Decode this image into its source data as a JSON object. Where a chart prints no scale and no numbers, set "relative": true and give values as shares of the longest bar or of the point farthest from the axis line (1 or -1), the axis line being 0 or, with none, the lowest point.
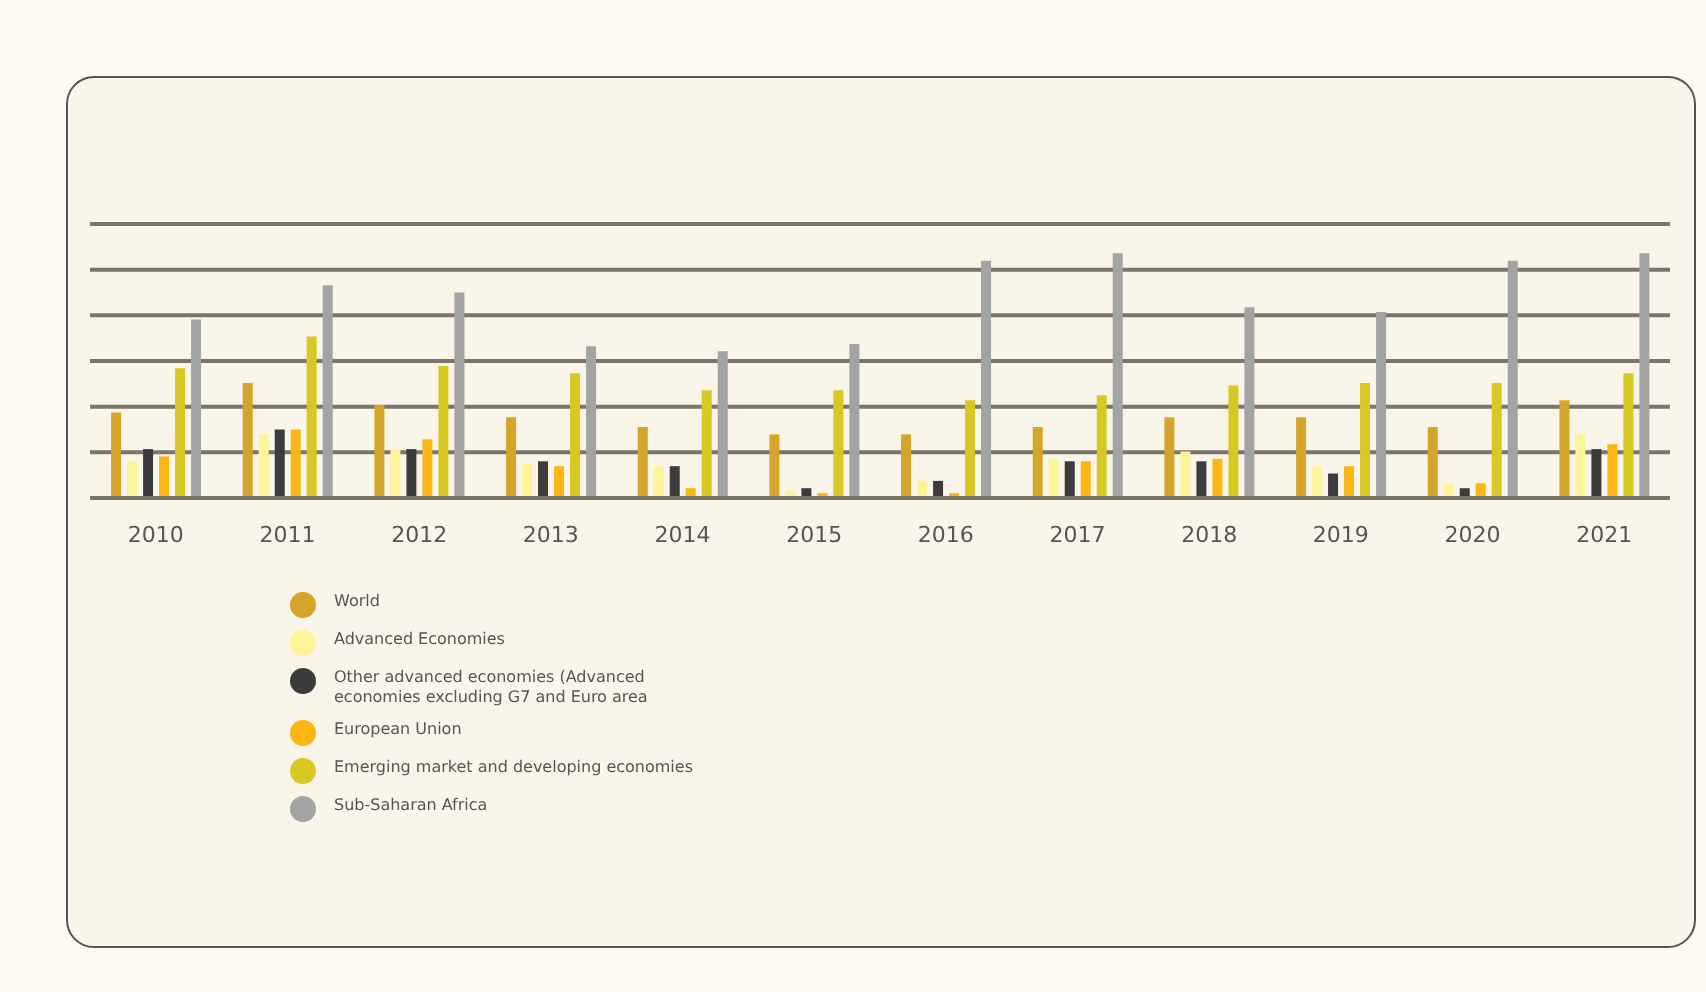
{
  "chart_data": {
    "type": "bar",
    "relative": true,
    "grid": "y",
    "legend": "bottom left",
    "categories": [
      "2010",
      "2011",
      "2012",
      "2013",
      "2014",
      "2015",
      "2016",
      "2017",
      "2018",
      "2019",
      "2020",
      "2021"
    ],
    "series": [
      {
        "name": "World",
        "color": "#d4a52a",
        "values": [
          0.35,
          0.47,
          0.38,
          0.33,
          0.29,
          0.26,
          0.26,
          0.29,
          0.33,
          0.33,
          0.29,
          0.4
        ]
      },
      {
        "name": "Advanced Economies",
        "color": "#fdf49a",
        "values": [
          0.15,
          0.26,
          0.2,
          0.14,
          0.13,
          0.03,
          0.07,
          0.16,
          0.19,
          0.13,
          0.06,
          0.26
        ]
      },
      {
        "name": "Other advanced economies (Advanced economies excluding G7 and Euro area",
        "color": "#3c3c3c",
        "values": [
          0.2,
          0.28,
          0.2,
          0.15,
          0.13,
          0.04,
          0.07,
          0.15,
          0.15,
          0.1,
          0.04,
          0.2
        ]
      },
      {
        "name": "European Union",
        "color": "#fbb615",
        "values": [
          0.17,
          0.28,
          0.24,
          0.13,
          0.04,
          0.02,
          0.02,
          0.15,
          0.16,
          0.13,
          0.06,
          0.22
        ]
      },
      {
        "name": "Emerging market and developing economies",
        "color": "#d8c823",
        "values": [
          0.53,
          0.66,
          0.54,
          0.51,
          0.44,
          0.44,
          0.4,
          0.42,
          0.46,
          0.47,
          0.47,
          0.51
        ]
      },
      {
        "name": "Sub-Saharan Africa",
        "color": "#a3a3a3",
        "values": [
          0.73,
          0.87,
          0.84,
          0.62,
          0.6,
          0.63,
          0.97,
          1,
          0.78,
          0.76,
          0.97,
          1
        ]
      }
    ]
  }
}
